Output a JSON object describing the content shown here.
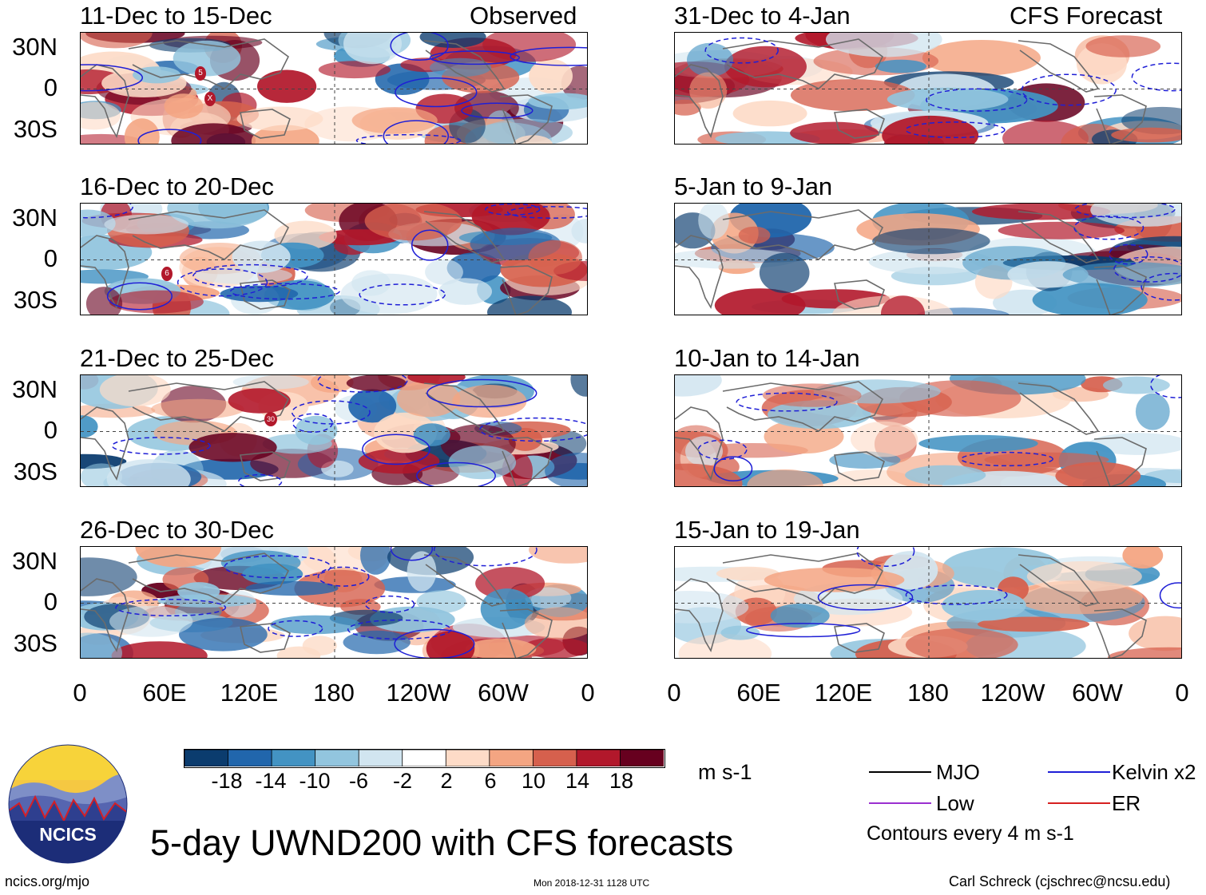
{
  "panel_headers": {
    "left": "Observed",
    "right": "CFS Forecast"
  },
  "panels_left": [
    {
      "title": "11-Dec to 15-Dec"
    },
    {
      "title": "16-Dec to 20-Dec"
    },
    {
      "title": "21-Dec to 25-Dec"
    },
    {
      "title": "26-Dec to 30-Dec"
    }
  ],
  "panels_right": [
    {
      "title": "31-Dec to 4-Jan"
    },
    {
      "title": "5-Jan to 9-Jan"
    },
    {
      "title": "10-Jan to 14-Jan"
    },
    {
      "title": "15-Jan to 19-Jan"
    }
  ],
  "y_ticks": [
    "30N",
    "0",
    "30S"
  ],
  "x_ticks": [
    "0",
    "60E",
    "120E",
    "180",
    "120W",
    "60W",
    "0"
  ],
  "storm_markers": [
    {
      "panel": 0,
      "label": "5"
    },
    {
      "panel": 0,
      "label": "X"
    },
    {
      "panel": 1,
      "label": "6"
    },
    {
      "panel": 2,
      "label": "30"
    }
  ],
  "colorbar": {
    "ticks": [
      "-18",
      "-14",
      "-10",
      "-6",
      "-2",
      "2",
      "6",
      "10",
      "14",
      "18"
    ],
    "unit": "m s-1",
    "colors": [
      "#0b3c6e",
      "#2166ac",
      "#4393c3",
      "#92c5de",
      "#d1e5f0",
      "#ffffff",
      "#fddbc7",
      "#f4a582",
      "#d6604d",
      "#b2182b",
      "#67001f"
    ]
  },
  "legend": {
    "items": [
      {
        "label": "MJO",
        "color": "#000000"
      },
      {
        "label": "Kelvin x2",
        "color": "#1f1fd6"
      },
      {
        "label": "Low",
        "color": "#9b30d0"
      },
      {
        "label": "ER",
        "color": "#d62020"
      }
    ],
    "note": "Contours every 4 m s-1"
  },
  "logo": {
    "text": "NCICS"
  },
  "main_title": "5-day UWND200 with CFS forecasts",
  "footer": {
    "left": "ncics.org/mjo",
    "center": "Mon 2018-12-31 1128 UTC",
    "right": "Carl Schreck (cjschrec@ncsu.edu)"
  },
  "chart_data": {
    "type": "heatmap",
    "title": "5-day UWND200 with CFS forecasts",
    "variable": "200-hPa zonal wind anomaly",
    "unit": "m s-1",
    "x_axis": {
      "ticks": [
        "0",
        "60E",
        "120E",
        "180",
        "120W",
        "60W",
        "0"
      ],
      "range_deg_lon": [
        0,
        360
      ]
    },
    "y_axis": {
      "ticks": [
        "30N",
        "0",
        "30S"
      ],
      "range_deg_lat": [
        -40,
        40
      ]
    },
    "color_levels": [
      -18,
      -14,
      -10,
      -6,
      -2,
      2,
      6,
      10,
      14,
      18
    ],
    "contour_interval": 4,
    "panels": [
      {
        "period": "11-Dec to 15-Dec",
        "source": "Observed"
      },
      {
        "period": "16-Dec to 20-Dec",
        "source": "Observed"
      },
      {
        "period": "21-Dec to 25-Dec",
        "source": "Observed"
      },
      {
        "period": "26-Dec to 30-Dec",
        "source": "Observed"
      },
      {
        "period": "31-Dec to 4-Jan",
        "source": "CFS Forecast"
      },
      {
        "period": "5-Jan to 9-Jan",
        "source": "CFS Forecast"
      },
      {
        "period": "10-Jan to 14-Jan",
        "source": "CFS Forecast"
      },
      {
        "period": "15-Jan to 19-Jan",
        "source": "CFS Forecast"
      }
    ]
  }
}
